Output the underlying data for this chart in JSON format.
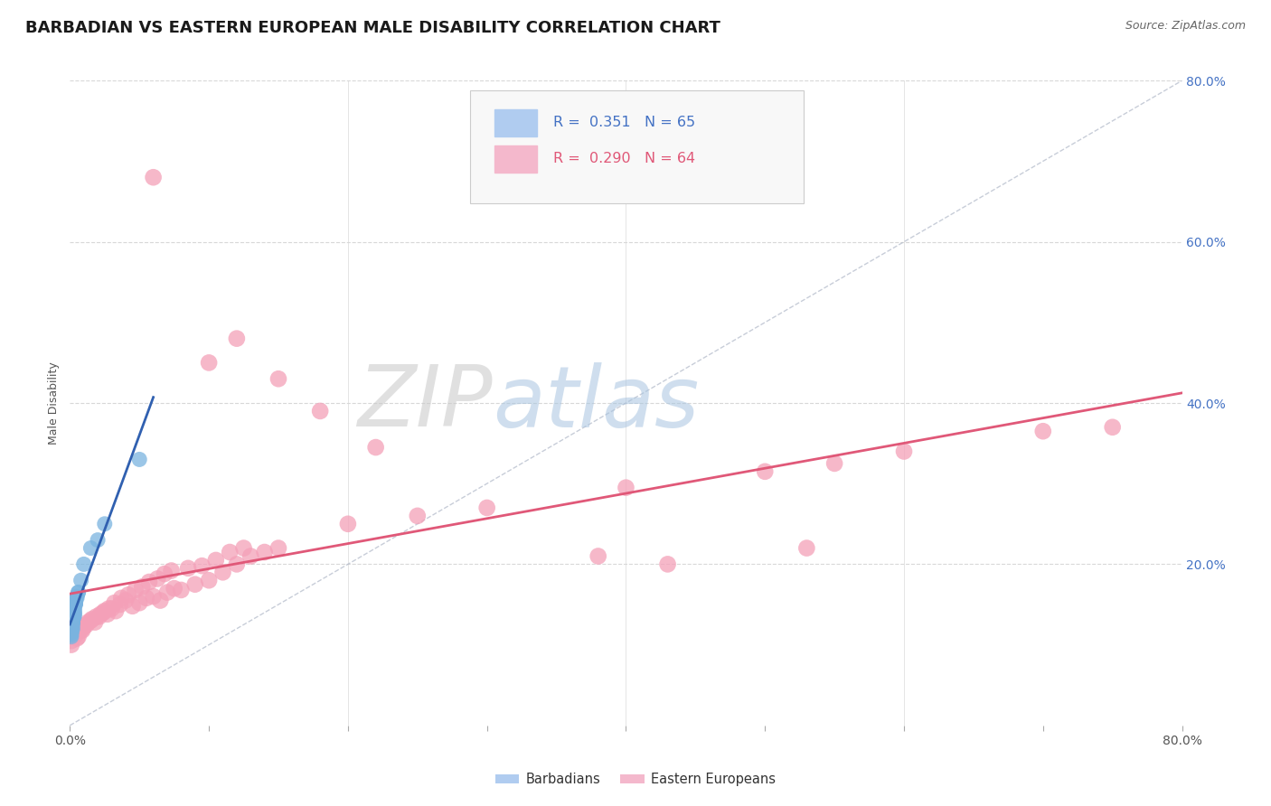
{
  "title": "BARBADIAN VS EASTERN EUROPEAN MALE DISABILITY CORRELATION CHART",
  "source": "Source: ZipAtlas.com",
  "ylabel": "Male Disability",
  "barbadian_color": "#7ab4e0",
  "eastern_color": "#f4a0b8",
  "regression_barbadian_color": "#3060b0",
  "regression_eastern_color": "#e05878",
  "diagonal_color": "#b0b8c8",
  "background_color": "#ffffff",
  "xlim": [
    0,
    0.8
  ],
  "ylim": [
    0,
    0.8
  ],
  "barbadians_x": [
    0.001,
    0.002,
    0.003,
    0.001,
    0.002,
    0.004,
    0.001,
    0.002,
    0.003,
    0.001,
    0.002,
    0.001,
    0.003,
    0.002,
    0.001,
    0.004,
    0.002,
    0.003,
    0.001,
    0.002,
    0.003,
    0.001,
    0.002,
    0.001,
    0.003,
    0.002,
    0.004,
    0.001,
    0.002,
    0.003,
    0.001,
    0.002,
    0.001,
    0.003,
    0.002,
    0.001,
    0.004,
    0.002,
    0.003,
    0.001,
    0.005,
    0.003,
    0.002,
    0.001,
    0.004,
    0.002,
    0.003,
    0.001,
    0.002,
    0.006,
    0.004,
    0.003,
    0.002,
    0.001,
    0.005,
    0.003,
    0.002,
    0.008,
    0.006,
    0.004,
    0.01,
    0.015,
    0.02,
    0.025,
    0.05
  ],
  "barbadians_y": [
    0.13,
    0.14,
    0.145,
    0.12,
    0.15,
    0.155,
    0.125,
    0.135,
    0.142,
    0.118,
    0.148,
    0.128,
    0.138,
    0.143,
    0.122,
    0.152,
    0.132,
    0.14,
    0.115,
    0.145,
    0.138,
    0.12,
    0.148,
    0.125,
    0.135,
    0.142,
    0.155,
    0.118,
    0.128,
    0.138,
    0.123,
    0.133,
    0.115,
    0.143,
    0.13,
    0.12,
    0.152,
    0.13,
    0.138,
    0.118,
    0.158,
    0.142,
    0.128,
    0.112,
    0.152,
    0.128,
    0.145,
    0.115,
    0.135,
    0.165,
    0.15,
    0.14,
    0.125,
    0.11,
    0.16,
    0.135,
    0.12,
    0.18,
    0.165,
    0.152,
    0.2,
    0.22,
    0.23,
    0.25,
    0.33
  ],
  "eastern_x": [
    0.001,
    0.003,
    0.005,
    0.007,
    0.009,
    0.012,
    0.015,
    0.018,
    0.021,
    0.024,
    0.027,
    0.03,
    0.033,
    0.036,
    0.04,
    0.045,
    0.05,
    0.055,
    0.06,
    0.065,
    0.07,
    0.075,
    0.08,
    0.09,
    0.1,
    0.11,
    0.12,
    0.13,
    0.14,
    0.15,
    0.001,
    0.004,
    0.006,
    0.008,
    0.01,
    0.013,
    0.016,
    0.019,
    0.022,
    0.025,
    0.028,
    0.032,
    0.037,
    0.042,
    0.047,
    0.052,
    0.057,
    0.063,
    0.068,
    0.073,
    0.085,
    0.095,
    0.105,
    0.115,
    0.125,
    0.2,
    0.25,
    0.3,
    0.4,
    0.5,
    0.55,
    0.6,
    0.7,
    0.75
  ],
  "eastern_y": [
    0.105,
    0.115,
    0.108,
    0.12,
    0.118,
    0.125,
    0.13,
    0.128,
    0.135,
    0.14,
    0.138,
    0.145,
    0.142,
    0.15,
    0.155,
    0.148,
    0.152,
    0.158,
    0.16,
    0.155,
    0.165,
    0.17,
    0.168,
    0.175,
    0.18,
    0.19,
    0.2,
    0.21,
    0.215,
    0.22,
    0.1,
    0.112,
    0.11,
    0.118,
    0.122,
    0.128,
    0.132,
    0.135,
    0.138,
    0.142,
    0.145,
    0.152,
    0.158,
    0.162,
    0.168,
    0.172,
    0.178,
    0.182,
    0.188,
    0.192,
    0.195,
    0.198,
    0.205,
    0.215,
    0.22,
    0.25,
    0.26,
    0.27,
    0.295,
    0.315,
    0.325,
    0.34,
    0.365,
    0.37
  ],
  "eastern_outliers_x": [
    0.06,
    0.1,
    0.12,
    0.15,
    0.18,
    0.22,
    0.38,
    0.43,
    0.53
  ],
  "eastern_outliers_y": [
    0.68,
    0.45,
    0.48,
    0.43,
    0.39,
    0.345,
    0.21,
    0.2,
    0.22
  ],
  "title_fontsize": 13,
  "axis_label_fontsize": 9,
  "tick_fontsize": 10,
  "right_tick_color": "#4472c4"
}
